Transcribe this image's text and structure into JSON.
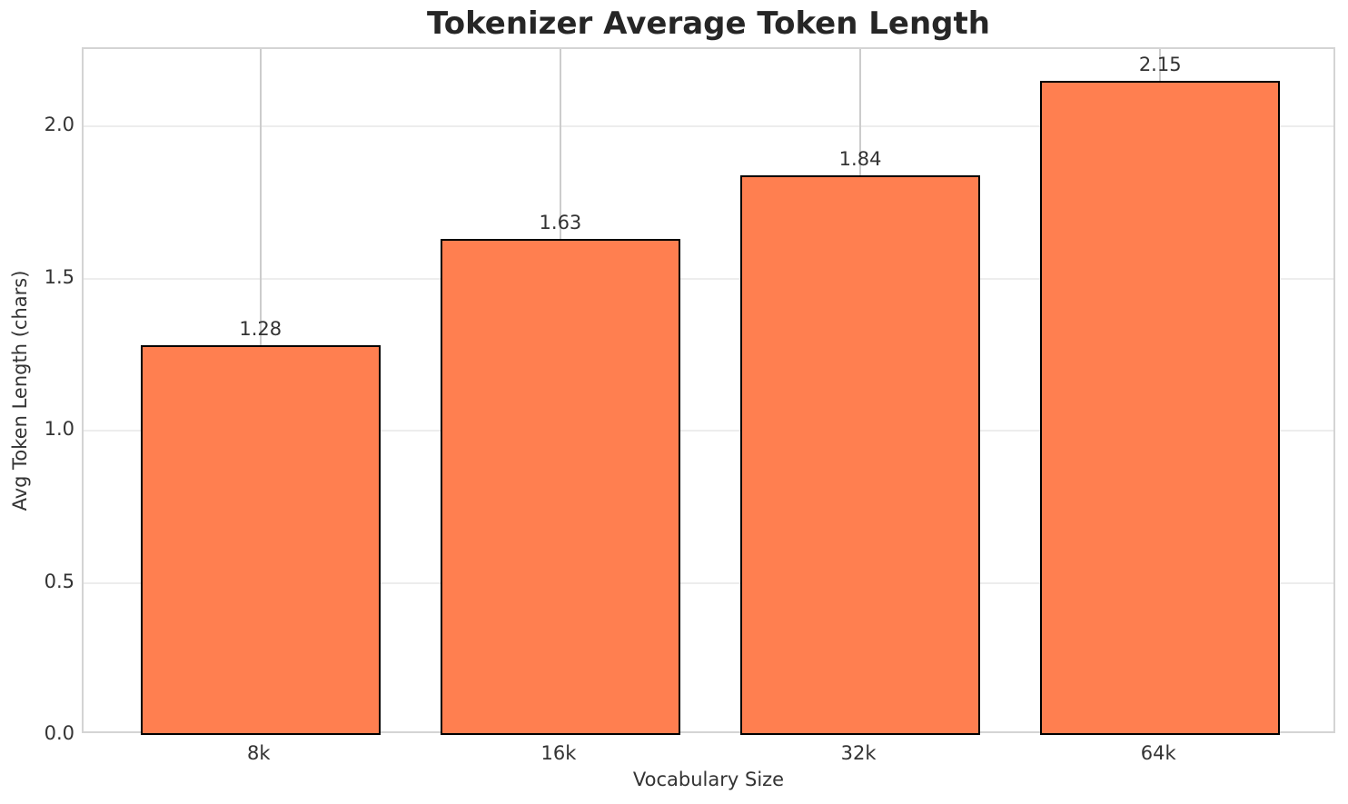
{
  "chart_data": {
    "type": "bar",
    "title": "Tokenizer Average Token Length",
    "xlabel": "Vocabulary Size",
    "ylabel": "Avg Token Length (chars)",
    "categories": [
      "8k",
      "16k",
      "32k",
      "64k"
    ],
    "values": [
      1.28,
      1.63,
      1.84,
      2.15
    ],
    "bar_value_labels": [
      "1.28",
      "1.63",
      "1.84",
      "2.15"
    ],
    "ylim": [
      0,
      2.254
    ],
    "xlim": [
      -0.59,
      3.59
    ],
    "yticks": [
      0.0,
      0.5,
      1.0,
      1.5,
      2.0
    ],
    "ytick_labels": [
      "0.0",
      "0.5",
      "1.0",
      "1.5",
      "2.0"
    ],
    "bar_width_units": 0.8,
    "grid": true,
    "legend_position": "none",
    "colors": {
      "bar_fill": "#FF7F50",
      "bar_edge": "#000000",
      "grid_vertical": "#cccccc",
      "grid_horizontal": "#ededed",
      "spine": "#d4d4d4",
      "title_text": "#262626",
      "tick_text": "#333333"
    }
  }
}
